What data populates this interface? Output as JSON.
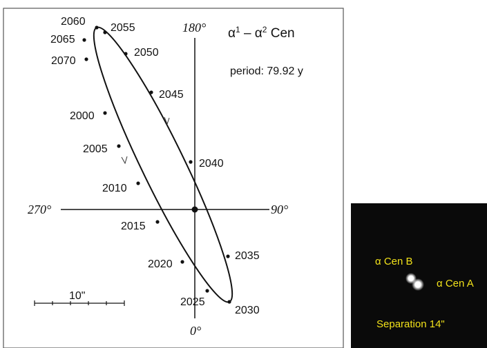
{
  "orbit": {
    "title": {
      "star1": "α",
      "sup1": "1",
      "dash": " – ",
      "star2": "α",
      "sup2": "2",
      "name": " Cen"
    },
    "period": "period: 79.92 y",
    "angles": {
      "top": "180°",
      "bottom": "0°",
      "left": "270°",
      "right": "90°"
    },
    "scale": "10\"",
    "years": [
      "2060",
      "2055",
      "2050",
      "2045",
      "2040",
      "2035",
      "2030",
      "2025",
      "2020",
      "2015",
      "2010",
      "2005",
      "2000",
      "2070",
      "2065"
    ]
  },
  "photo": {
    "star_b": "α Cen B",
    "star_a": "α Cen A",
    "separation": "Separation 14\""
  }
}
